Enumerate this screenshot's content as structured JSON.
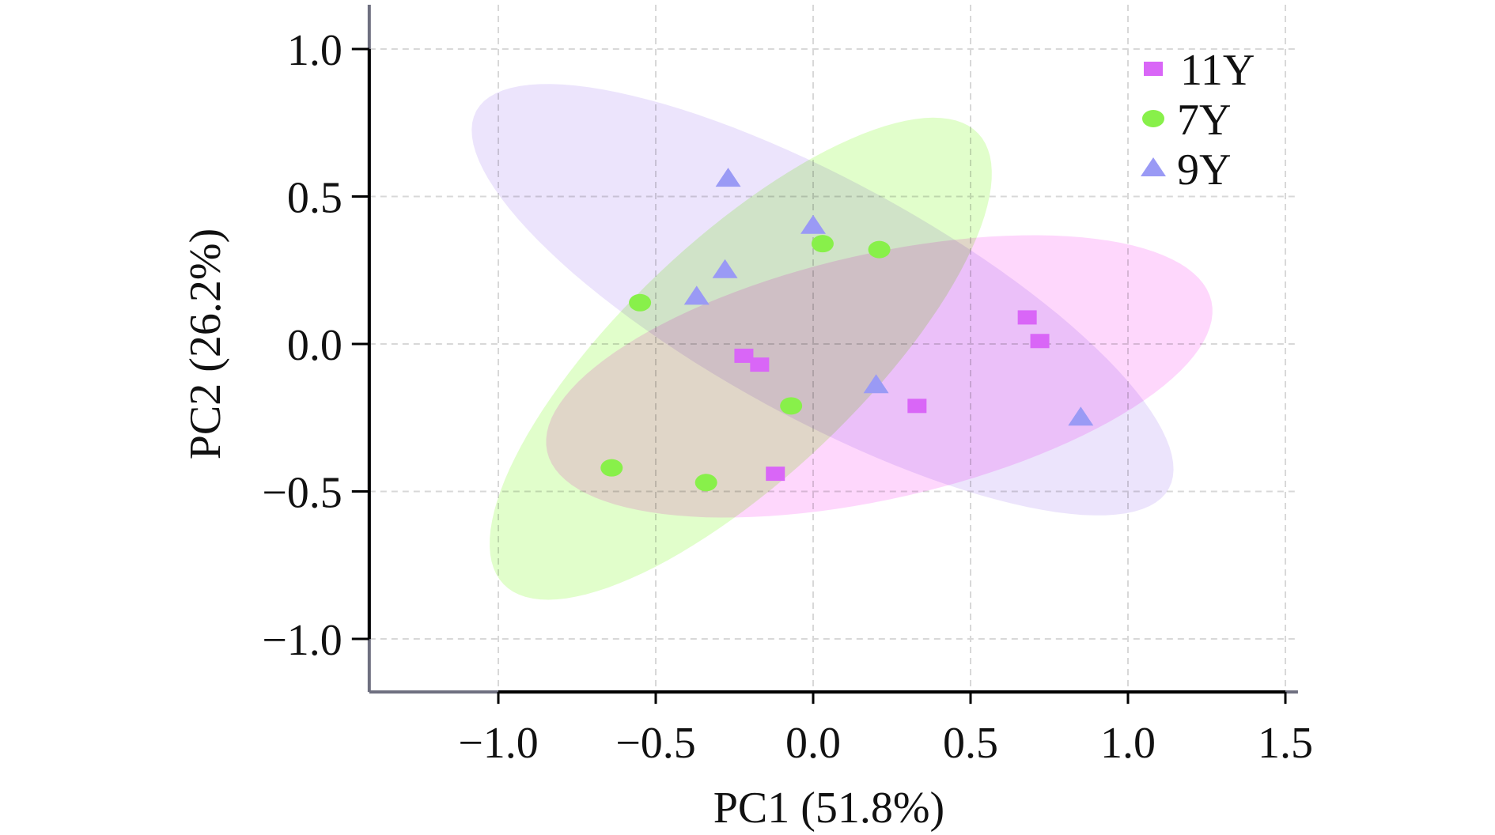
{
  "chart_data": {
    "type": "scatter",
    "title": "",
    "xlabel": "PC1 (51.8%)",
    "ylabel": "PC2 (26.2%)",
    "xlim": [
      -1.41,
      1.54
    ],
    "ylim": [
      -1.18,
      1.15
    ],
    "xticks": [
      -1.0,
      -0.5,
      0.0,
      0.5,
      1.0,
      1.5
    ],
    "xtick_labels": [
      "−1.0",
      "−0.5",
      "0.0",
      "0.5",
      "1.0",
      "1.5"
    ],
    "yticks": [
      1.0,
      0.5,
      0.0,
      -0.5,
      -1.0
    ],
    "ytick_labels": [
      "1.0",
      "0.5",
      "0.0",
      "−0.5",
      "−1.0"
    ],
    "grid": true,
    "legend_position": "top-right",
    "series": [
      {
        "name": "11Y",
        "marker": "square",
        "color": "#d966f7",
        "fill_color": "#fdc8fb",
        "points": [
          [
            -0.22,
            -0.04
          ],
          [
            -0.17,
            -0.07
          ],
          [
            0.33,
            -0.21
          ],
          [
            -0.12,
            -0.44
          ],
          [
            0.68,
            0.09
          ],
          [
            0.72,
            0.01
          ]
        ],
        "ellipse": {
          "center": [
            0.21,
            -0.11
          ],
          "axis1": [
            1.055,
            0.255
          ],
          "axis2": [
            0.085,
            -0.405
          ]
        }
      },
      {
        "name": "7Y",
        "marker": "circle",
        "color": "#88f04a",
        "fill_color": "#d5fdb7",
        "points": [
          [
            0.03,
            0.34
          ],
          [
            0.21,
            0.32
          ],
          [
            -0.55,
            0.14
          ],
          [
            -0.07,
            -0.21
          ],
          [
            -0.64,
            -0.42
          ],
          [
            -0.34,
            -0.47
          ]
        ],
        "ellipse": {
          "center": [
            -0.23,
            -0.05
          ],
          "axis1": [
            0.754,
            0.764
          ],
          "axis2": [
            0.26,
            -0.29
          ]
        }
      },
      {
        "name": "9Y",
        "marker": "triangle",
        "color": "#9a9af5",
        "fill_color": "#e4dafb",
        "points": [
          [
            -0.27,
            0.56
          ],
          [
            0.0,
            0.4
          ],
          [
            -0.28,
            0.25
          ],
          [
            -0.37,
            0.16
          ],
          [
            0.2,
            -0.14
          ],
          [
            0.85,
            -0.25
          ]
        ],
        "ellipse": {
          "center": [
            0.03,
            0.15
          ],
          "axis1": [
            1.1,
            -0.64
          ],
          "axis2": [
            -0.18,
            -0.354
          ]
        }
      }
    ]
  }
}
